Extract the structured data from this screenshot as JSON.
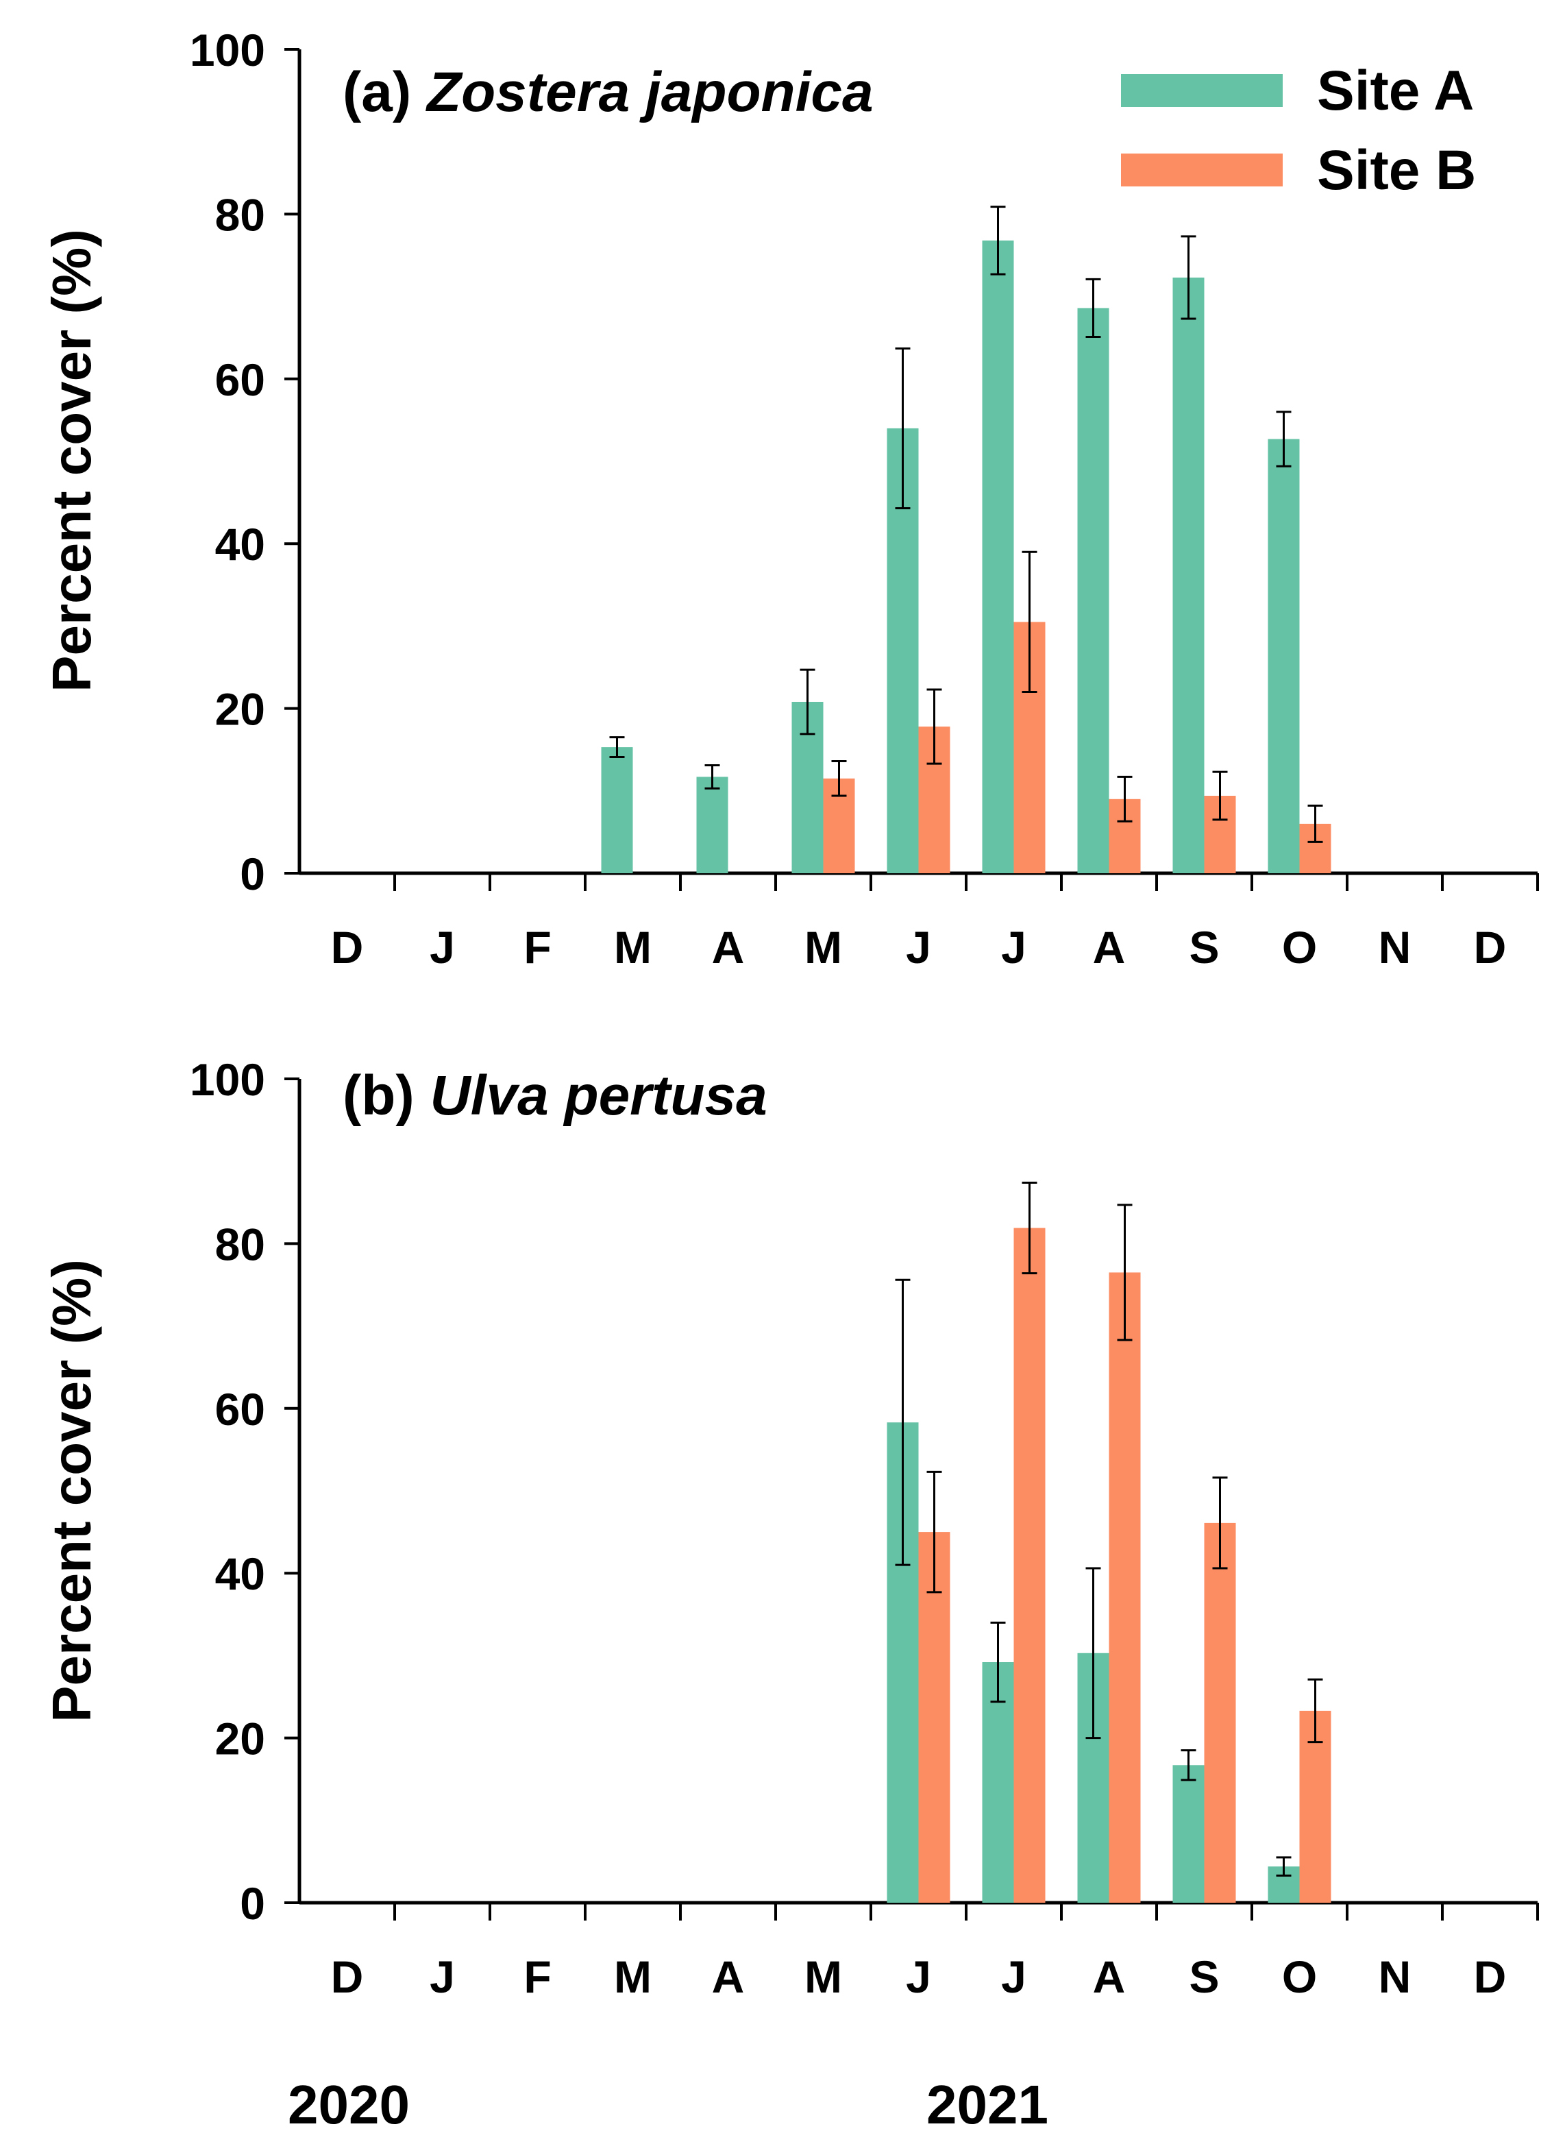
{
  "chart_data": [
    {
      "type": "bar",
      "title_prefix": "(a)",
      "title_species": "Zostera japonica",
      "ylabel": "Percent cover (%)",
      "ylim": [
        0,
        100
      ],
      "yticks": [
        "0",
        "20",
        "40",
        "60",
        "80",
        "100"
      ],
      "categories": [
        "D",
        "J",
        "F",
        "M",
        "A",
        "M",
        "J",
        "J",
        "A",
        "S",
        "O",
        "N",
        "D"
      ],
      "legend": [
        "Site A",
        "Site B"
      ],
      "series": [
        {
          "name": "Site A",
          "color": "#66C2A5",
          "values": [
            null,
            null,
            null,
            15.3,
            11.7,
            20.8,
            54.0,
            76.8,
            68.6,
            72.3,
            52.7,
            null,
            null
          ],
          "errors": [
            null,
            null,
            null,
            1.2,
            1.4,
            3.9,
            9.7,
            4.1,
            3.5,
            5.0,
            3.3,
            null,
            null
          ]
        },
        {
          "name": "Site B",
          "color": "#FC8D62",
          "values": [
            null,
            null,
            null,
            null,
            null,
            11.5,
            17.8,
            30.5,
            9.0,
            9.4,
            6.0,
            null,
            null
          ],
          "errors": [
            null,
            null,
            null,
            null,
            null,
            2.1,
            4.5,
            8.5,
            2.7,
            2.9,
            2.2,
            null,
            null
          ]
        }
      ]
    },
    {
      "type": "bar",
      "title_prefix": "(b)",
      "title_species": "Ulva pertusa",
      "ylabel": "Percent cover (%)",
      "ylim": [
        0,
        100
      ],
      "yticks": [
        "0",
        "20",
        "40",
        "60",
        "80",
        "100"
      ],
      "categories": [
        "D",
        "J",
        "F",
        "M",
        "A",
        "M",
        "J",
        "J",
        "A",
        "S",
        "O",
        "N",
        "D"
      ],
      "series": [
        {
          "name": "Site A",
          "color": "#66C2A5",
          "values": [
            null,
            null,
            null,
            null,
            null,
            null,
            58.3,
            29.2,
            30.3,
            16.7,
            4.4,
            null,
            null
          ],
          "errors": [
            null,
            null,
            null,
            null,
            null,
            null,
            17.3,
            4.8,
            10.3,
            1.8,
            1.1,
            null,
            null
          ]
        },
        {
          "name": "Site B",
          "color": "#FC8D62",
          "values": [
            null,
            null,
            null,
            null,
            null,
            null,
            45.0,
            81.9,
            76.5,
            46.1,
            23.3,
            null,
            null
          ],
          "errors": [
            null,
            null,
            null,
            null,
            null,
            null,
            7.3,
            5.5,
            8.2,
            5.5,
            3.8,
            null,
            null
          ]
        }
      ]
    }
  ],
  "years": [
    "2020",
    "2021"
  ]
}
